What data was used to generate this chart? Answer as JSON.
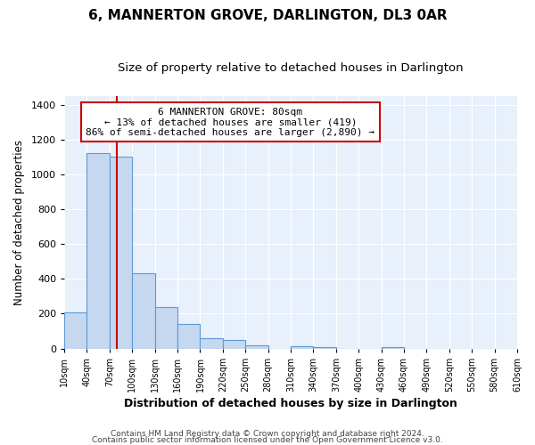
{
  "title": "6, MANNERTON GROVE, DARLINGTON, DL3 0AR",
  "subtitle": "Size of property relative to detached houses in Darlington",
  "xlabel": "Distribution of detached houses by size in Darlington",
  "ylabel": "Number of detached properties",
  "bin_edges": [
    10,
    40,
    70,
    100,
    130,
    160,
    190,
    220,
    250,
    280,
    310,
    340,
    370,
    400,
    430,
    460,
    490,
    520,
    550,
    580,
    610
  ],
  "bar_heights": [
    210,
    1120,
    1100,
    430,
    240,
    140,
    60,
    48,
    20,
    0,
    15,
    10,
    0,
    0,
    10,
    0,
    0,
    0,
    0,
    0
  ],
  "bar_color": "#c5d8f0",
  "bar_edgecolor": "#5b9bd5",
  "property_line_x": 80,
  "property_line_color": "#cc0000",
  "annotation_text": "6 MANNERTON GROVE: 80sqm\n← 13% of detached houses are smaller (419)\n86% of semi-detached houses are larger (2,890) →",
  "annotation_box_edgecolor": "#cc0000",
  "annotation_box_facecolor": "#ffffff",
  "ylim": [
    0,
    1450
  ],
  "yticks": [
    0,
    200,
    400,
    600,
    800,
    1000,
    1200,
    1400
  ],
  "tick_labels": [
    "10sqm",
    "40sqm",
    "70sqm",
    "100sqm",
    "130sqm",
    "160sqm",
    "190sqm",
    "220sqm",
    "250sqm",
    "280sqm",
    "310sqm",
    "340sqm",
    "370sqm",
    "400sqm",
    "430sqm",
    "460sqm",
    "490sqm",
    "520sqm",
    "550sqm",
    "580sqm",
    "610sqm"
  ],
  "footer_line1": "Contains HM Land Registry data © Crown copyright and database right 2024.",
  "footer_line2": "Contains public sector information licensed under the Open Government Licence v3.0.",
  "background_color": "#ffffff",
  "plot_bg_color": "#e8f0fb",
  "grid_color": "#ffffff",
  "title_fontsize": 11,
  "subtitle_fontsize": 9.5,
  "footer_fontsize": 6.5
}
